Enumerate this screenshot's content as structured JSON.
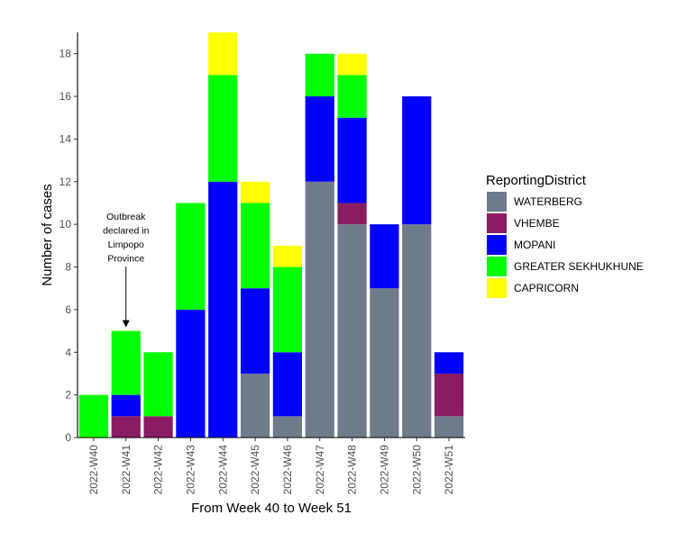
{
  "chart_data": {
    "type": "bar",
    "stacked": true,
    "title": "",
    "xlabel": "From Week 40 to Week 51",
    "ylabel": "Number of cases",
    "ylim": [
      0,
      19
    ],
    "yticks": [
      0,
      2,
      4,
      6,
      8,
      10,
      12,
      14,
      16,
      18
    ],
    "grid": false,
    "legend_position": "right",
    "legend_title": "ReportingDistrict",
    "categories": [
      "2022-W40",
      "2022-W41",
      "2022-W42",
      "2022-W43",
      "2022-W44",
      "2022-W45",
      "2022-W46",
      "2022-W47",
      "2022-W48",
      "2022-W49",
      "2022-W50",
      "2022-W51"
    ],
    "series": [
      {
        "name": "WATERBERG",
        "color": "#6e7b8b",
        "values": [
          0,
          0,
          0,
          0,
          0,
          3,
          1,
          12,
          10,
          7,
          10,
          1
        ]
      },
      {
        "name": "VHEMBE",
        "color": "#8b1c62",
        "values": [
          0,
          1,
          1,
          0,
          0,
          0,
          0,
          0,
          1,
          0,
          0,
          2
        ]
      },
      {
        "name": "MOPANI",
        "color": "#0000ff",
        "values": [
          0,
          1,
          0,
          6,
          12,
          4,
          3,
          4,
          4,
          3,
          6,
          1
        ]
      },
      {
        "name": "GREATER SEKHUKHUNE",
        "color": "#00ff00",
        "values": [
          2,
          3,
          3,
          5,
          5,
          4,
          4,
          2,
          2,
          0,
          0,
          0
        ]
      },
      {
        "name": "CAPRICORN",
        "color": "#ffff00",
        "values": [
          0,
          0,
          0,
          0,
          2,
          1,
          1,
          0,
          1,
          0,
          0,
          0
        ]
      }
    ],
    "legend_order": [
      "WATERBERG",
      "VHEMBE",
      "MOPANI",
      "GREATER SEKHUKHUNE",
      "CAPRICORN"
    ],
    "annotation": {
      "lines": [
        "Outbreak",
        "declared in",
        "Limpopo",
        "Province"
      ],
      "category": "2022-W41",
      "arrow_to_value": 5
    }
  }
}
